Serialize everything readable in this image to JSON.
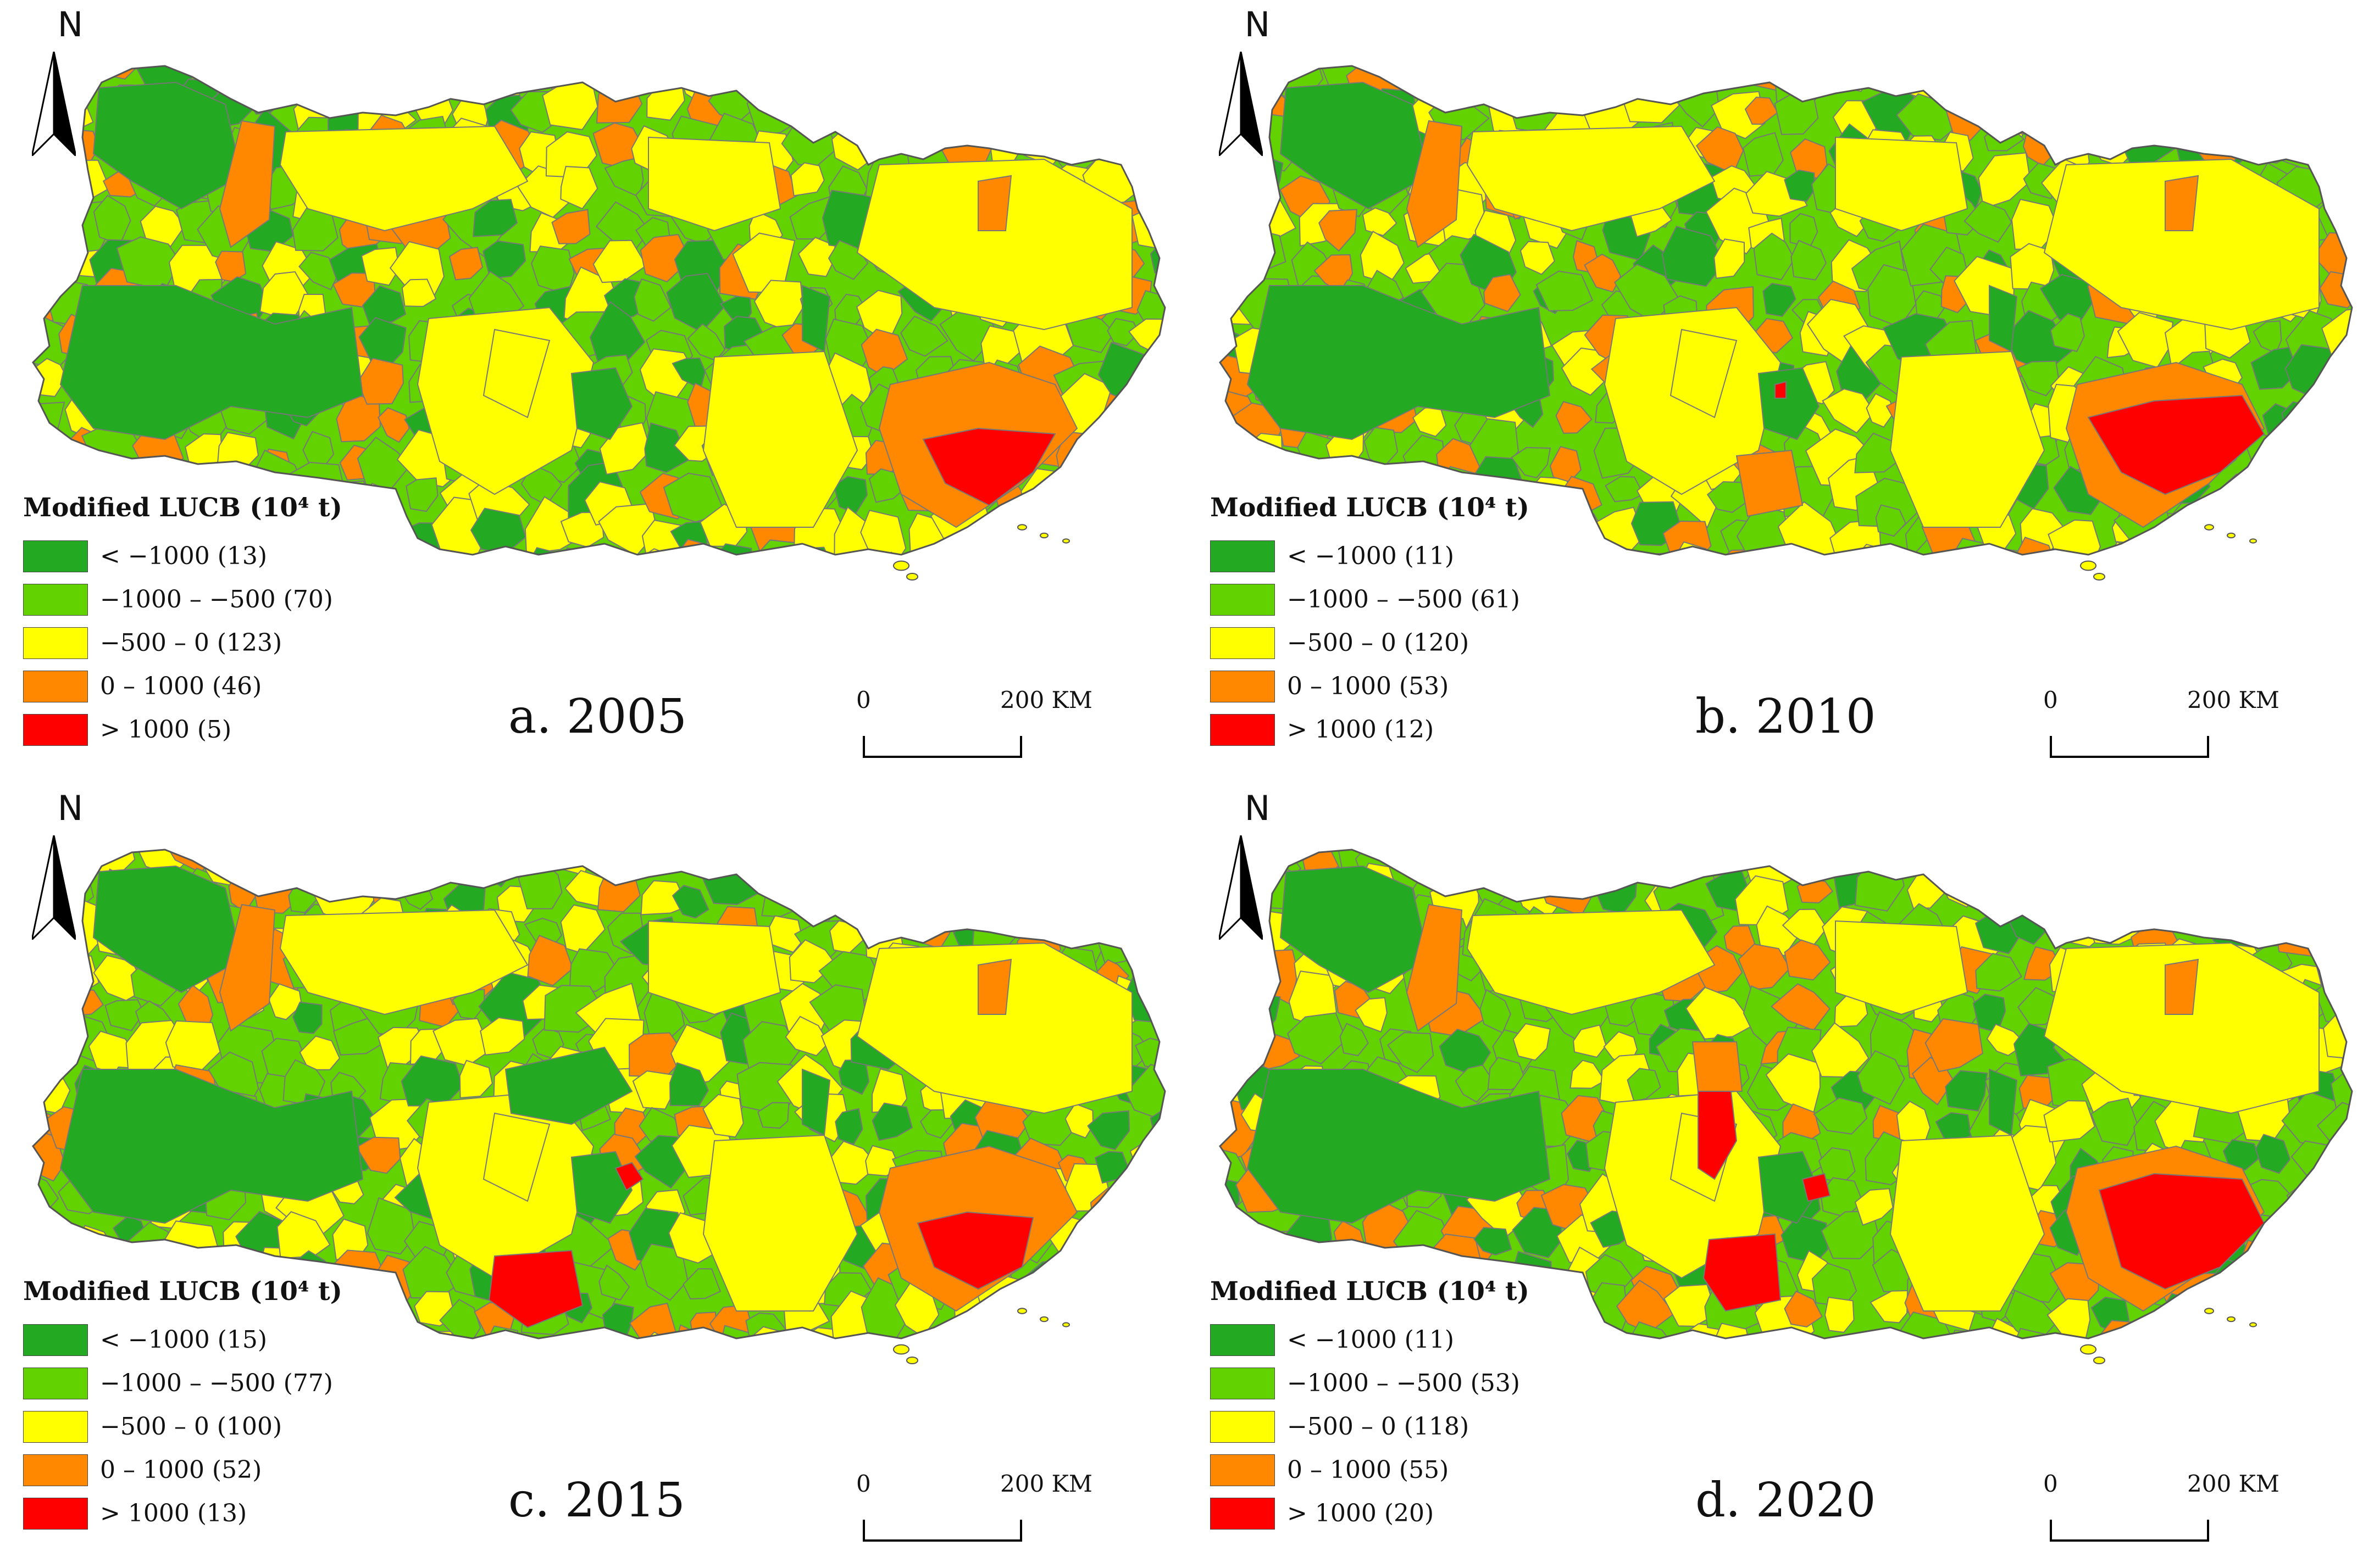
{
  "north_label": "N",
  "legend_title": "Modified LUCB (10⁴ t)",
  "scale": {
    "start_label": "0",
    "end_label": "200 KM"
  },
  "colors": {
    "dark_green": "#23a922",
    "light_green": "#62d200",
    "yellow": "#ffff00",
    "orange": "#ff8800",
    "red": "#ff0000",
    "boundary": "#777777"
  },
  "panels": [
    {
      "label": "a. 2005",
      "legend": [
        {
          "text": "< −1000 (13)",
          "color": "#23a922"
        },
        {
          "text": "−1000 – −500 (70)",
          "color": "#62d200"
        },
        {
          "text": "−500 – 0 (123)",
          "color": "#ffff00"
        },
        {
          "text": "0 – 1000 (46)",
          "color": "#ff8800"
        },
        {
          "text": "> 1000 (5)",
          "color": "#ff0000"
        }
      ]
    },
    {
      "label": "b. 2010",
      "legend": [
        {
          "text": "< −1000 (11)",
          "color": "#23a922"
        },
        {
          "text": "−1000 – −500 (61)",
          "color": "#62d200"
        },
        {
          "text": "−500 – 0 (120)",
          "color": "#ffff00"
        },
        {
          "text": "0 – 1000 (53)",
          "color": "#ff8800"
        },
        {
          "text": "> 1000 (12)",
          "color": "#ff0000"
        }
      ]
    },
    {
      "label": "c. 2015",
      "legend": [
        {
          "text": "< −1000 (15)",
          "color": "#23a922"
        },
        {
          "text": "−1000 – −500 (77)",
          "color": "#62d200"
        },
        {
          "text": "−500 – 0 (100)",
          "color": "#ffff00"
        },
        {
          "text": "0 – 1000 (52)",
          "color": "#ff8800"
        },
        {
          "text": "> 1000 (13)",
          "color": "#ff0000"
        }
      ]
    },
    {
      "label": "d. 2020",
      "legend": [
        {
          "text": "< −1000 (11)",
          "color": "#23a922"
        },
        {
          "text": "−1000 – −500 (53)",
          "color": "#62d200"
        },
        {
          "text": "−500 – 0 (118)",
          "color": "#ffff00"
        },
        {
          "text": "0 – 1000 (55)",
          "color": "#ff8800"
        },
        {
          "text": "> 1000 (20)",
          "color": "#ff0000"
        }
      ]
    }
  ]
}
